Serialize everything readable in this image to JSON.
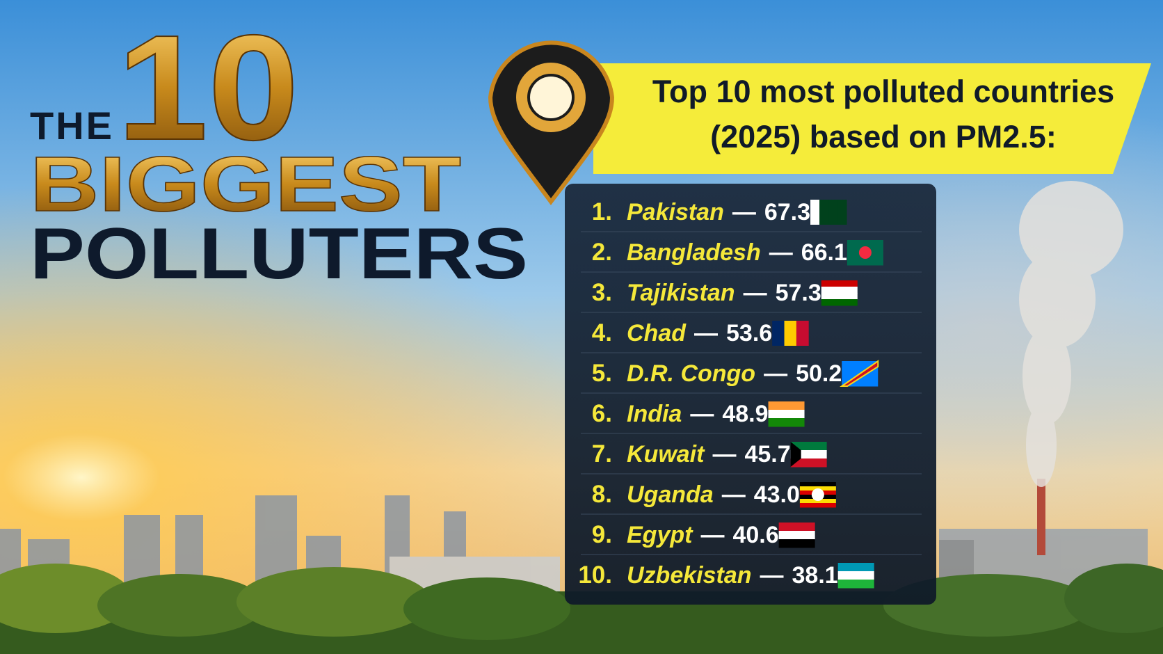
{
  "headline": {
    "line1_word": "THE",
    "line1_number": "10",
    "line2": "BIGGEST",
    "line3": "POLLUTERS"
  },
  "banner": {
    "line1": "Top 10 most polluted countries",
    "line2": "(2025) based on PM2.5:"
  },
  "separator": "—",
  "list": [
    {
      "rank": "1.",
      "country": "Pakistan",
      "value": "67.3"
    },
    {
      "rank": "2.",
      "country": "Bangladesh",
      "value": "66.1"
    },
    {
      "rank": "3.",
      "country": "Tajikistan",
      "value": "57.3"
    },
    {
      "rank": "4.",
      "country": "Chad",
      "value": "53.6"
    },
    {
      "rank": "5.",
      "country": "D.R. Congo",
      "value": "50.2"
    },
    {
      "rank": "6.",
      "country": "India",
      "value": "48.9"
    },
    {
      "rank": "7.",
      "country": "Kuwait",
      "value": "45.7"
    },
    {
      "rank": "8.",
      "country": "Uganda",
      "value": "43.0"
    },
    {
      "rank": "9.",
      "country": "Egypt",
      "value": "40.6"
    },
    {
      "rank": "10.",
      "country": "Uzbekistan",
      "value": "38.1"
    }
  ]
}
